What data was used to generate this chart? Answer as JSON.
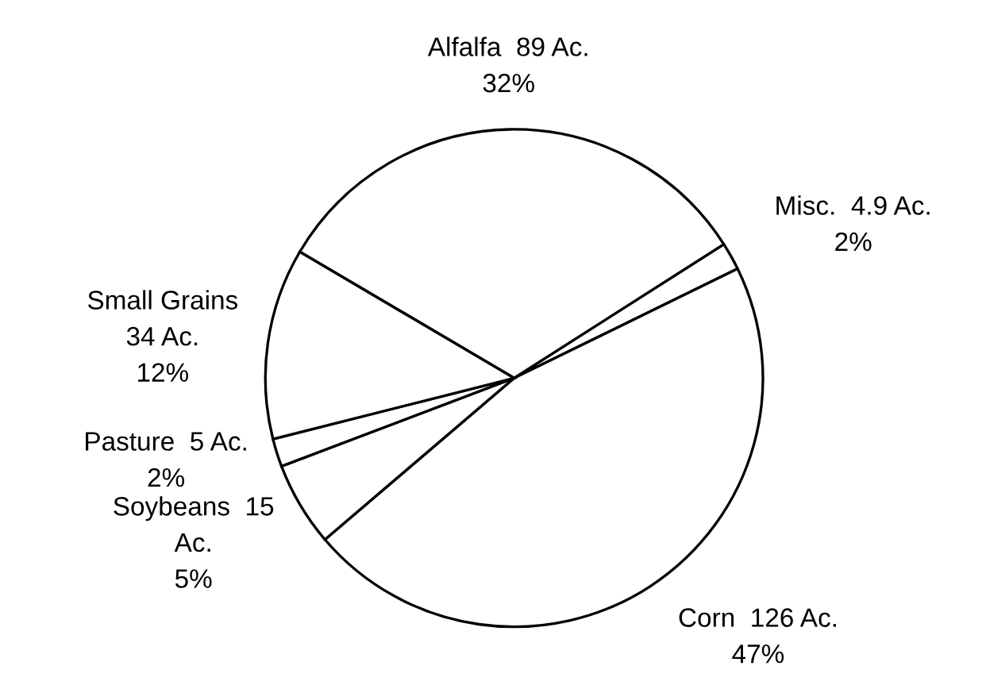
{
  "chart_data": {
    "type": "pie",
    "categories": [
      "Alfalfa",
      "Misc.",
      "Corn",
      "Soybeans",
      "Pasture",
      "Small Grains"
    ],
    "values": [
      89,
      4.9,
      126,
      15,
      5,
      34
    ],
    "value_labels": [
      "89 Ac.\n32%",
      "4.9 Ac.\n2%",
      "126 Ac.\n47%",
      "15\nAc.\n5%",
      "5 Ac.\n2%",
      "34 Ac.\n12%"
    ],
    "colors": [
      "#ffffff",
      "#ffffff",
      "#ffffff",
      "#ffffff",
      "#ffffff",
      "#ffffff"
    ],
    "legend": false
  }
}
